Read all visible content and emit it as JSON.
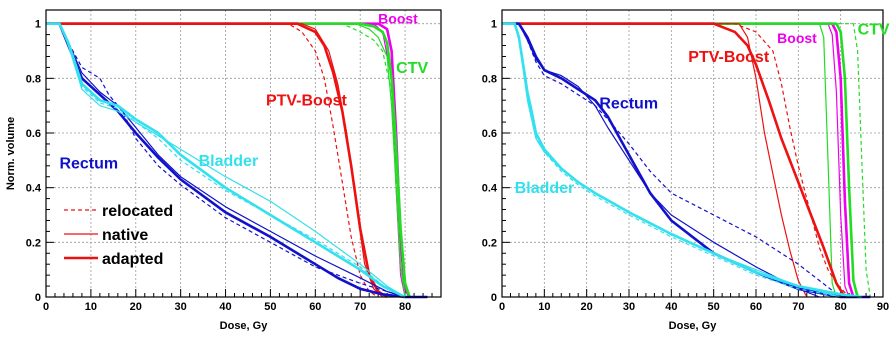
{
  "chart_data": [
    {
      "type": "line",
      "xlabel": "Dose, Gy",
      "ylabel": "Norm. volume",
      "xlim": [
        0,
        88
      ],
      "ylim": [
        0,
        1.05
      ],
      "xticks": [
        0,
        10,
        20,
        30,
        40,
        50,
        60,
        70,
        80
      ],
      "yticks": [
        0,
        0.2,
        0.4,
        0.6,
        0.8,
        1
      ],
      "grid": true,
      "legend": {
        "placement": "bottom-left",
        "entries": [
          {
            "label": "relocated",
            "style": "dashed",
            "color": "#ee1111"
          },
          {
            "label": "native",
            "style": "thin",
            "color": "#ee1111"
          },
          {
            "label": "adapted",
            "style": "thick",
            "color": "#ee1111"
          }
        ]
      },
      "annotations": [
        {
          "text": "Boost",
          "color": "#ee00ee",
          "at": [
            74,
            1.0
          ]
        },
        {
          "text": "CTV",
          "color": "#22dd22",
          "at": [
            78,
            0.82
          ]
        },
        {
          "text": "PTV-Boost",
          "color": "#ee1111",
          "at": [
            49,
            0.7
          ]
        },
        {
          "text": "Rectum",
          "color": "#1111cc",
          "at": [
            3,
            0.47
          ]
        },
        {
          "text": "Bladder",
          "color": "#33e0ee",
          "at": [
            34,
            0.48
          ]
        }
      ],
      "series": [
        {
          "color": "#ee00ee",
          "style": "thick",
          "x": [
            0,
            74,
            76,
            77,
            78,
            79,
            80,
            81
          ],
          "y": [
            1,
            1,
            0.98,
            0.9,
            0.6,
            0.2,
            0.03,
            0
          ]
        },
        {
          "color": "#ee00ee",
          "style": "thin",
          "x": [
            0,
            73,
            75,
            77,
            78,
            79,
            80
          ],
          "y": [
            1,
            1,
            0.97,
            0.8,
            0.4,
            0.08,
            0
          ]
        },
        {
          "color": "#22dd22",
          "style": "thick",
          "x": [
            0,
            70,
            73,
            75,
            76,
            77,
            78,
            79,
            80,
            81
          ],
          "y": [
            1,
            1,
            0.99,
            0.97,
            0.93,
            0.8,
            0.55,
            0.25,
            0.05,
            0
          ]
        },
        {
          "color": "#22dd22",
          "style": "thin",
          "x": [
            0,
            69,
            72,
            74,
            76,
            77,
            78,
            79,
            80
          ],
          "y": [
            1,
            1,
            0.98,
            0.95,
            0.88,
            0.7,
            0.4,
            0.12,
            0
          ]
        },
        {
          "color": "#22dd22",
          "style": "dashed",
          "x": [
            0,
            66,
            70,
            73,
            75,
            77,
            78,
            79,
            80
          ],
          "y": [
            1,
            1,
            0.97,
            0.94,
            0.9,
            0.75,
            0.45,
            0.1,
            0
          ]
        },
        {
          "color": "#ee1111",
          "style": "thick",
          "x": [
            0,
            56,
            60,
            62,
            64,
            66,
            68,
            70,
            72,
            74,
            76
          ],
          "y": [
            1,
            1,
            0.97,
            0.92,
            0.82,
            0.68,
            0.48,
            0.25,
            0.08,
            0.02,
            0
          ]
        },
        {
          "color": "#ee1111",
          "style": "thin",
          "x": [
            0,
            57,
            60,
            63,
            65,
            67,
            69,
            71,
            73,
            75
          ],
          "y": [
            1,
            1,
            0.98,
            0.9,
            0.78,
            0.6,
            0.35,
            0.12,
            0.03,
            0
          ]
        },
        {
          "color": "#ee1111",
          "style": "dashed",
          "x": [
            0,
            54,
            57,
            60,
            62,
            64,
            66,
            68,
            70,
            72,
            74
          ],
          "y": [
            1,
            1,
            0.97,
            0.9,
            0.8,
            0.62,
            0.42,
            0.22,
            0.08,
            0.02,
            0
          ]
        },
        {
          "color": "#1111cc",
          "style": "thick",
          "x": [
            0,
            3,
            5,
            8,
            12,
            16,
            20,
            25,
            30,
            40,
            50,
            60,
            65,
            70,
            75,
            80,
            85
          ],
          "y": [
            1,
            1,
            0.92,
            0.8,
            0.74,
            0.68,
            0.6,
            0.51,
            0.43,
            0.31,
            0.22,
            0.12,
            0.07,
            0.03,
            0.01,
            0,
            0
          ]
        },
        {
          "color": "#1111cc",
          "style": "thin",
          "x": [
            0,
            3,
            5,
            8,
            12,
            16,
            20,
            25,
            30,
            40,
            50,
            60,
            70,
            76,
            80,
            84
          ],
          "y": [
            1,
            1,
            0.93,
            0.82,
            0.75,
            0.7,
            0.62,
            0.52,
            0.44,
            0.33,
            0.24,
            0.15,
            0.07,
            0.02,
            0,
            0
          ]
        },
        {
          "color": "#1111cc",
          "style": "dashed",
          "x": [
            0,
            3,
            5,
            8,
            12,
            14,
            17,
            20,
            25,
            30,
            40,
            50,
            60,
            70,
            76,
            80
          ],
          "y": [
            1,
            1,
            0.93,
            0.84,
            0.8,
            0.74,
            0.68,
            0.58,
            0.48,
            0.41,
            0.29,
            0.2,
            0.11,
            0.05,
            0.02,
            0
          ]
        },
        {
          "color": "#33e0ee",
          "style": "thick",
          "x": [
            0,
            3,
            5,
            8,
            12,
            16,
            20,
            25,
            30,
            40,
            50,
            60,
            70,
            75,
            80
          ],
          "y": [
            1,
            1,
            0.93,
            0.78,
            0.72,
            0.7,
            0.65,
            0.6,
            0.52,
            0.4,
            0.3,
            0.2,
            0.1,
            0.04,
            0
          ]
        },
        {
          "color": "#33e0ee",
          "style": "thin",
          "x": [
            0,
            3,
            5,
            8,
            12,
            16,
            20,
            25,
            30,
            40,
            50,
            60,
            70,
            76,
            80
          ],
          "y": [
            1,
            1,
            0.92,
            0.76,
            0.7,
            0.68,
            0.64,
            0.59,
            0.54,
            0.44,
            0.35,
            0.24,
            0.12,
            0.04,
            0
          ]
        },
        {
          "color": "#33e0ee",
          "style": "dashed",
          "x": [
            0,
            3,
            5,
            8,
            12,
            16,
            20,
            25,
            30,
            40,
            50,
            60,
            70,
            76,
            80
          ],
          "y": [
            1,
            1,
            0.92,
            0.77,
            0.71,
            0.69,
            0.64,
            0.58,
            0.5,
            0.39,
            0.3,
            0.21,
            0.11,
            0.03,
            0
          ]
        }
      ]
    },
    {
      "type": "line",
      "xlabel": "Dose, Gy",
      "ylabel": "",
      "xlim": [
        0,
        90
      ],
      "ylim": [
        0,
        1.05
      ],
      "xticks": [
        0,
        10,
        20,
        30,
        40,
        50,
        60,
        70,
        80,
        90
      ],
      "yticks": [
        0,
        0.2,
        0.4,
        0.6,
        0.8,
        1
      ],
      "grid": true,
      "annotations": [
        {
          "text": "Boost",
          "color": "#ee00ee",
          "at": [
            65,
            0.93
          ]
        },
        {
          "text": "CTV",
          "color": "#22dd22",
          "at": [
            84,
            0.96
          ]
        },
        {
          "text": "PTV-Boost",
          "color": "#ee1111",
          "at": [
            44,
            0.86
          ]
        },
        {
          "text": "Rectum",
          "color": "#1111cc",
          "at": [
            23,
            0.69
          ]
        },
        {
          "text": "Bladder",
          "color": "#33e0ee",
          "at": [
            3,
            0.38
          ]
        }
      ],
      "series": [
        {
          "color": "#ee00ee",
          "style": "thick",
          "x": [
            0,
            78,
            79,
            80,
            81,
            82,
            83
          ],
          "y": [
            1,
            1,
            0.97,
            0.8,
            0.35,
            0.05,
            0
          ]
        },
        {
          "color": "#ee00ee",
          "style": "thin",
          "x": [
            0,
            77,
            78,
            79,
            80,
            81,
            82
          ],
          "y": [
            1,
            1,
            0.96,
            0.75,
            0.3,
            0.04,
            0
          ]
        },
        {
          "color": "#22dd22",
          "style": "thick",
          "x": [
            0,
            79,
            80,
            81,
            82,
            83,
            84
          ],
          "y": [
            1,
            1,
            0.97,
            0.8,
            0.4,
            0.06,
            0
          ]
        },
        {
          "color": "#22dd22",
          "style": "thin",
          "x": [
            0,
            75,
            76,
            77,
            78,
            79
          ],
          "y": [
            1,
            1,
            0.95,
            0.5,
            0.05,
            0
          ]
        },
        {
          "color": "#22dd22",
          "style": "dashed",
          "x": [
            0,
            83,
            84,
            85,
            86,
            87
          ],
          "y": [
            1,
            1,
            0.9,
            0.5,
            0.1,
            0
          ]
        },
        {
          "color": "#ee1111",
          "style": "thick",
          "x": [
            0,
            50,
            55,
            58,
            60,
            63,
            66,
            70,
            73,
            76,
            79,
            81
          ],
          "y": [
            1,
            1,
            0.97,
            0.92,
            0.85,
            0.72,
            0.58,
            0.42,
            0.3,
            0.18,
            0.05,
            0
          ]
        },
        {
          "color": "#ee1111",
          "style": "thin",
          "x": [
            0,
            56,
            58,
            60,
            62,
            64,
            66,
            68,
            70,
            72
          ],
          "y": [
            1,
            1,
            0.95,
            0.8,
            0.6,
            0.45,
            0.3,
            0.17,
            0.06,
            0
          ]
        },
        {
          "color": "#ee1111",
          "style": "dashed",
          "x": [
            0,
            55,
            60,
            64,
            66,
            68,
            70,
            73,
            75,
            77,
            79,
            82
          ],
          "y": [
            1,
            1,
            0.97,
            0.9,
            0.78,
            0.62,
            0.48,
            0.3,
            0.18,
            0.1,
            0.05,
            0
          ]
        },
        {
          "color": "#1111cc",
          "style": "thick",
          "x": [
            0,
            4,
            6,
            8,
            10,
            14,
            18,
            22,
            25,
            30,
            35,
            40,
            50,
            60,
            70,
            80,
            87
          ],
          "y": [
            1,
            1,
            0.95,
            0.88,
            0.83,
            0.8,
            0.76,
            0.72,
            0.66,
            0.52,
            0.38,
            0.28,
            0.16,
            0.09,
            0.03,
            0,
            0
          ]
        },
        {
          "color": "#1111cc",
          "style": "thin",
          "x": [
            0,
            4,
            6,
            8,
            10,
            14,
            18,
            22,
            25,
            30,
            35,
            40,
            50,
            60,
            70,
            75
          ],
          "y": [
            1,
            1,
            0.94,
            0.87,
            0.83,
            0.81,
            0.77,
            0.7,
            0.62,
            0.5,
            0.38,
            0.3,
            0.2,
            0.11,
            0.03,
            0
          ]
        },
        {
          "color": "#1111cc",
          "style": "dashed",
          "x": [
            0,
            4,
            6,
            8,
            10,
            14,
            18,
            22,
            25,
            30,
            35,
            40,
            50,
            60,
            70,
            80
          ],
          "y": [
            1,
            1,
            0.94,
            0.86,
            0.81,
            0.78,
            0.74,
            0.7,
            0.65,
            0.56,
            0.46,
            0.38,
            0.3,
            0.22,
            0.12,
            0
          ]
        },
        {
          "color": "#33e0ee",
          "style": "thick",
          "x": [
            0,
            3,
            4,
            5,
            6,
            7,
            8,
            10,
            14,
            18,
            22,
            30,
            40,
            50,
            60,
            70,
            80,
            85
          ],
          "y": [
            1,
            1,
            0.95,
            0.85,
            0.75,
            0.68,
            0.6,
            0.54,
            0.47,
            0.42,
            0.38,
            0.31,
            0.23,
            0.16,
            0.09,
            0.04,
            0.01,
            0
          ]
        },
        {
          "color": "#33e0ee",
          "style": "thin",
          "x": [
            0,
            3,
            4,
            5,
            6,
            7,
            8,
            10,
            14,
            18,
            22,
            30,
            40,
            50,
            60,
            70,
            80
          ],
          "y": [
            1,
            1,
            0.94,
            0.83,
            0.72,
            0.65,
            0.58,
            0.53,
            0.47,
            0.42,
            0.38,
            0.31,
            0.23,
            0.16,
            0.1,
            0.04,
            0
          ]
        },
        {
          "color": "#33e0ee",
          "style": "dashed",
          "x": [
            0,
            3,
            4,
            5,
            6,
            7,
            8,
            10,
            14,
            18,
            22,
            30,
            40,
            50,
            60,
            70,
            80
          ],
          "y": [
            1,
            1,
            0.95,
            0.84,
            0.74,
            0.66,
            0.59,
            0.53,
            0.46,
            0.41,
            0.37,
            0.3,
            0.22,
            0.15,
            0.08,
            0.03,
            0
          ]
        }
      ]
    }
  ]
}
